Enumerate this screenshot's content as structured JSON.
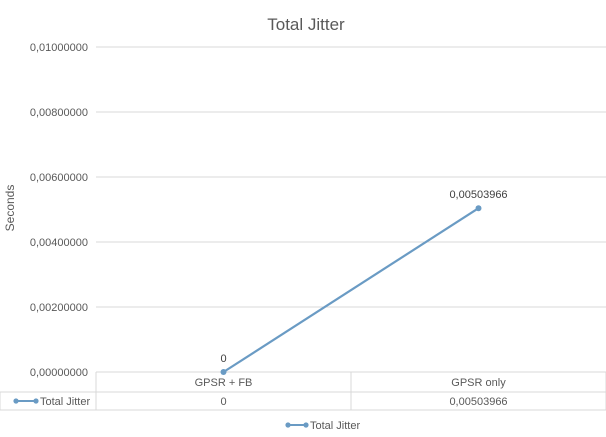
{
  "chart_data": {
    "type": "line",
    "title": "Total Jitter",
    "xlabel": "",
    "ylabel": "Seconds",
    "categories": [
      "GPSR + FB",
      "GPSR only"
    ],
    "series": [
      {
        "name": "Total Jitter",
        "values": [
          0,
          0.00503966
        ],
        "value_labels": [
          "0",
          "0,00503966"
        ],
        "color": "#6a9bc4"
      }
    ],
    "ylim": [
      0,
      0.01
    ],
    "yticks": [
      0,
      0.002,
      0.004,
      0.006,
      0.008,
      0.01
    ],
    "ytick_labels": [
      "0,00000000",
      "0,00200000",
      "0,00400000",
      "0,00600000",
      "0,00800000",
      "0,01000000"
    ],
    "grid": true,
    "data_table": {
      "row_label": "Total Jitter",
      "cells": [
        "0",
        "0,00503966"
      ]
    },
    "legend": {
      "position": "bottom",
      "entries": [
        "Total Jitter"
      ]
    }
  }
}
